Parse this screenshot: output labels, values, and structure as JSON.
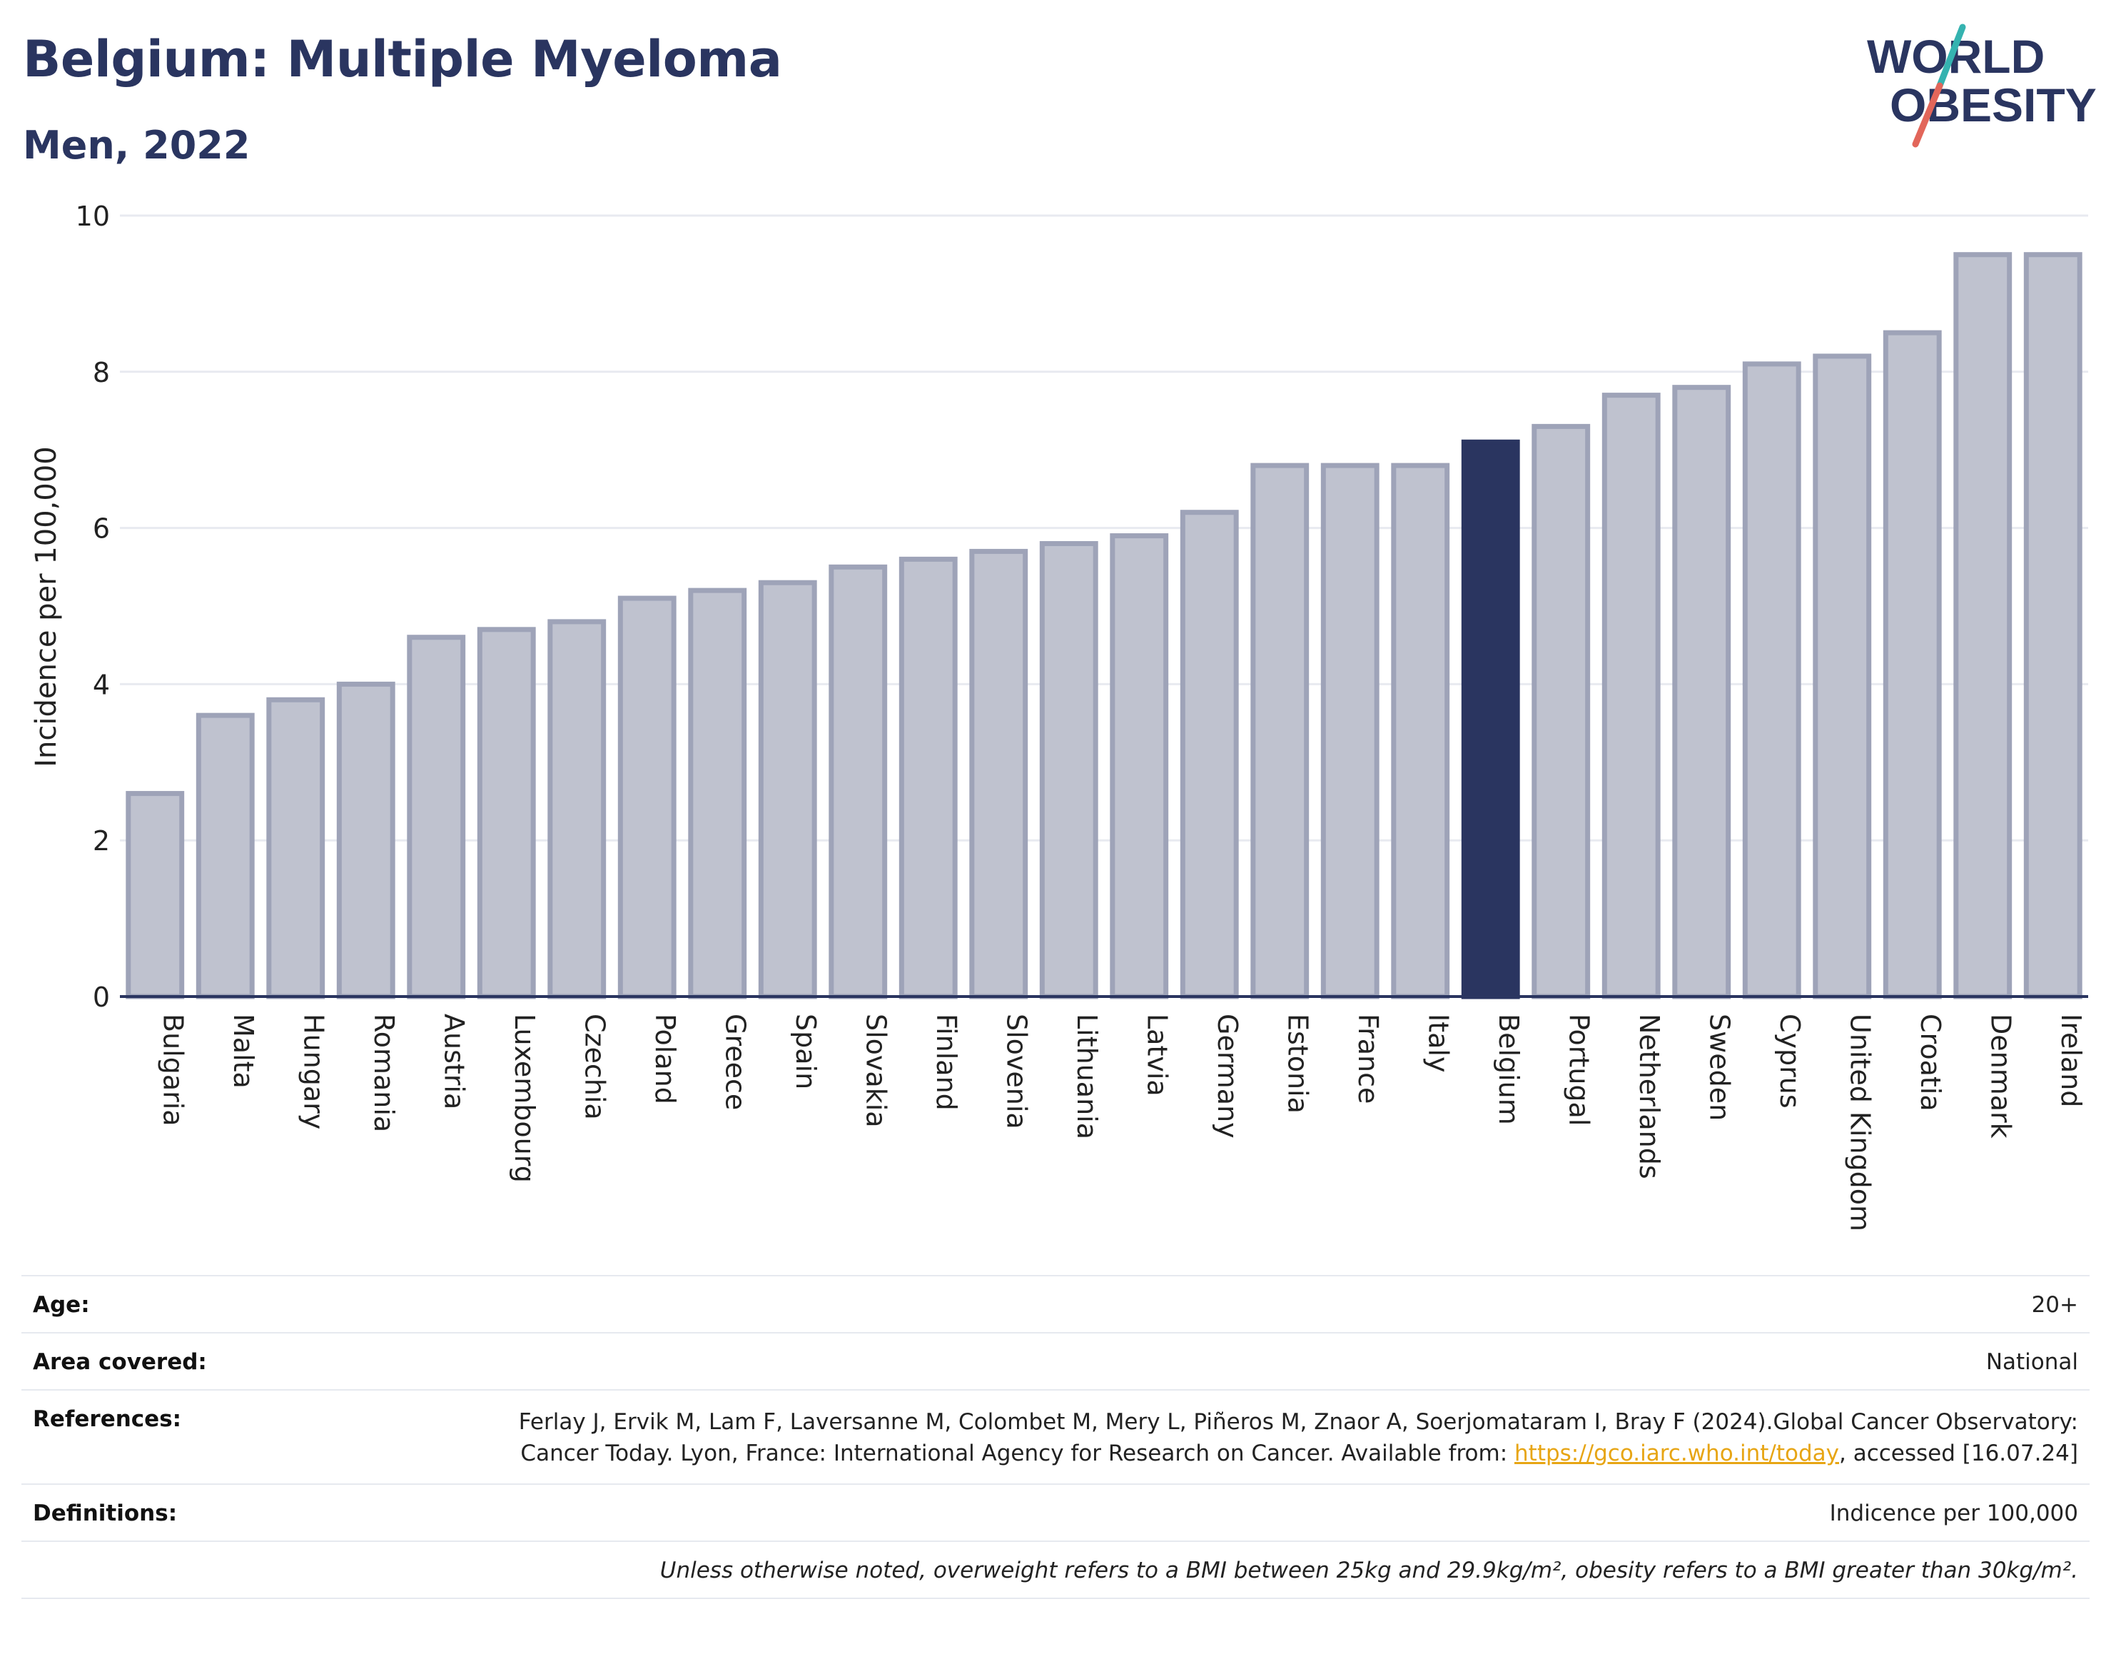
{
  "header": {
    "title": "Belgium: Multiple Myeloma",
    "subtitle": "Men, 2022"
  },
  "logo": {
    "line1": "WORLD",
    "line2": "OBESITY",
    "accent_teal": "#35b3b0",
    "accent_red": "#e2665a",
    "text_color": "#2a3560"
  },
  "chart_data": {
    "type": "bar",
    "title": "Belgium: Multiple Myeloma",
    "subtitle": "Men, 2022",
    "ylabel": "Incidence per 100,000",
    "xlabel": "",
    "ylim": [
      0,
      10
    ],
    "yticks": [
      0,
      2,
      4,
      6,
      8,
      10
    ],
    "grid": true,
    "highlight": "Belgium",
    "colors": {
      "default": "#bfc2cf",
      "default_border": "#9ea3b8",
      "highlight": "#2a3560"
    },
    "categories": [
      "Bulgaria",
      "Malta",
      "Hungary",
      "Romania",
      "Austria",
      "Luxembourg",
      "Czechia",
      "Poland",
      "Greece",
      "Spain",
      "Slovakia",
      "Finland",
      "Slovenia",
      "Lithuania",
      "Latvia",
      "Germany",
      "Estonia",
      "France",
      "Italy",
      "Belgium",
      "Portugal",
      "Netherlands",
      "Sweden",
      "Cyprus",
      "United Kingdom",
      "Croatia",
      "Denmark",
      "Ireland"
    ],
    "values": [
      2.6,
      3.6,
      3.8,
      4.0,
      4.6,
      4.7,
      4.8,
      5.1,
      5.2,
      5.3,
      5.5,
      5.6,
      5.7,
      5.8,
      5.9,
      6.2,
      6.8,
      6.8,
      6.8,
      7.1,
      7.3,
      7.7,
      7.8,
      8.1,
      8.2,
      8.5,
      9.5,
      9.5
    ]
  },
  "meta": {
    "age_label": "Age:",
    "age_value": "20+",
    "area_label": "Area covered:",
    "area_value": "National",
    "references_label": "References:",
    "references_text_1": "Ferlay J, Ervik M, Lam F, Laversanne M, Colombet M, Mery L, Piñeros M, Znaor A, Soerjomataram I, Bray F (2024).Global Cancer Observatory: Cancer Today. Lyon, France: International Agency for Research on Cancer. Available from: ",
    "references_link": "https://gco.iarc.who.int/today",
    "references_text_2": ", accessed [16.07.24]",
    "definitions_label": "Definitions:",
    "definitions_value": "Indicence per 100,000",
    "note": "Unless otherwise noted, overweight refers to a BMI between 25kg and 29.9kg/m², obesity refers to a BMI greater than 30kg/m²."
  }
}
